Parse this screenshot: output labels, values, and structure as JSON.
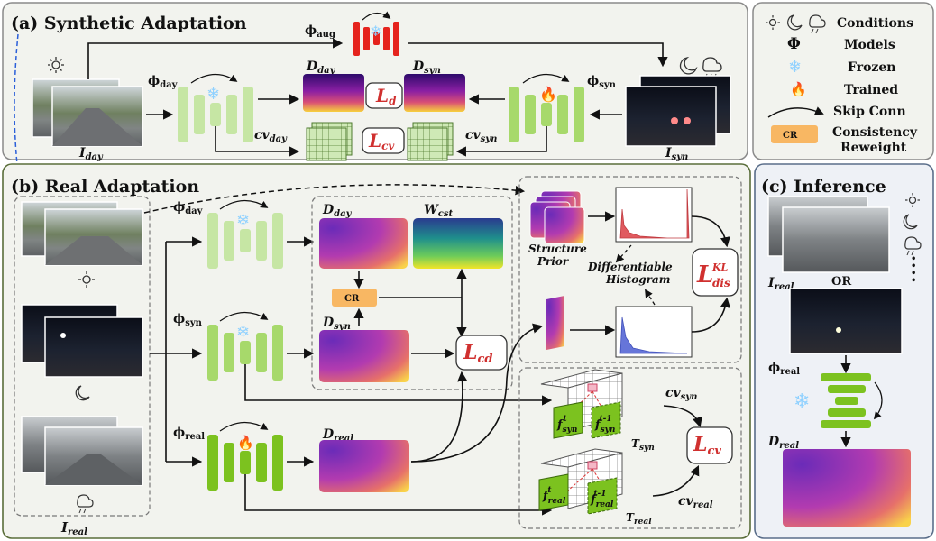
{
  "sections": {
    "synthetic": "(a) Synthetic Adaptation",
    "real": "(b) Real Adaptation",
    "inference": "(c) Inference"
  },
  "legend": {
    "conditions": "Conditions",
    "models_symbol": "Φ",
    "models": "Models",
    "frozen": "Frozen",
    "trained": "Trained",
    "skip": "Skip Conn",
    "cr_box": "CR",
    "consistency_1": "Consistency",
    "consistency_2": "Reweight"
  },
  "labels": {
    "phi": "ϕ",
    "sub_aug": "aug",
    "sub_day": "day",
    "sub_syn": "syn",
    "sub_real": "real",
    "sub_cst": "cst",
    "I": "I",
    "D": "D",
    "W": "W",
    "cv": "cv",
    "L": "L",
    "sub_d": "d",
    "sub_cv": "cv",
    "sub_cd": "cd",
    "sub_dis": "dis",
    "sup_kl": "KL",
    "cr": "CR",
    "structure_1": "Structure",
    "structure_2": "Prior",
    "diff_1": "Differentiable",
    "diff_2": "Histogram",
    "or": "OR",
    "dots": "•\n•\n•\n•",
    "f": "f",
    "t": "t",
    "t_minus_1": "t-1",
    "T": "T"
  },
  "colors": {
    "frozen_green": "#c6e6a4",
    "trained_green": "#7cc21f",
    "mid_green": "#a7d96b",
    "aug_red": "#e5231d",
    "cr_orange": "#f8b763",
    "loss_red": "#d0302f",
    "panel_bg": "#f2f3ee",
    "inference_bg": "#eef1f6"
  }
}
